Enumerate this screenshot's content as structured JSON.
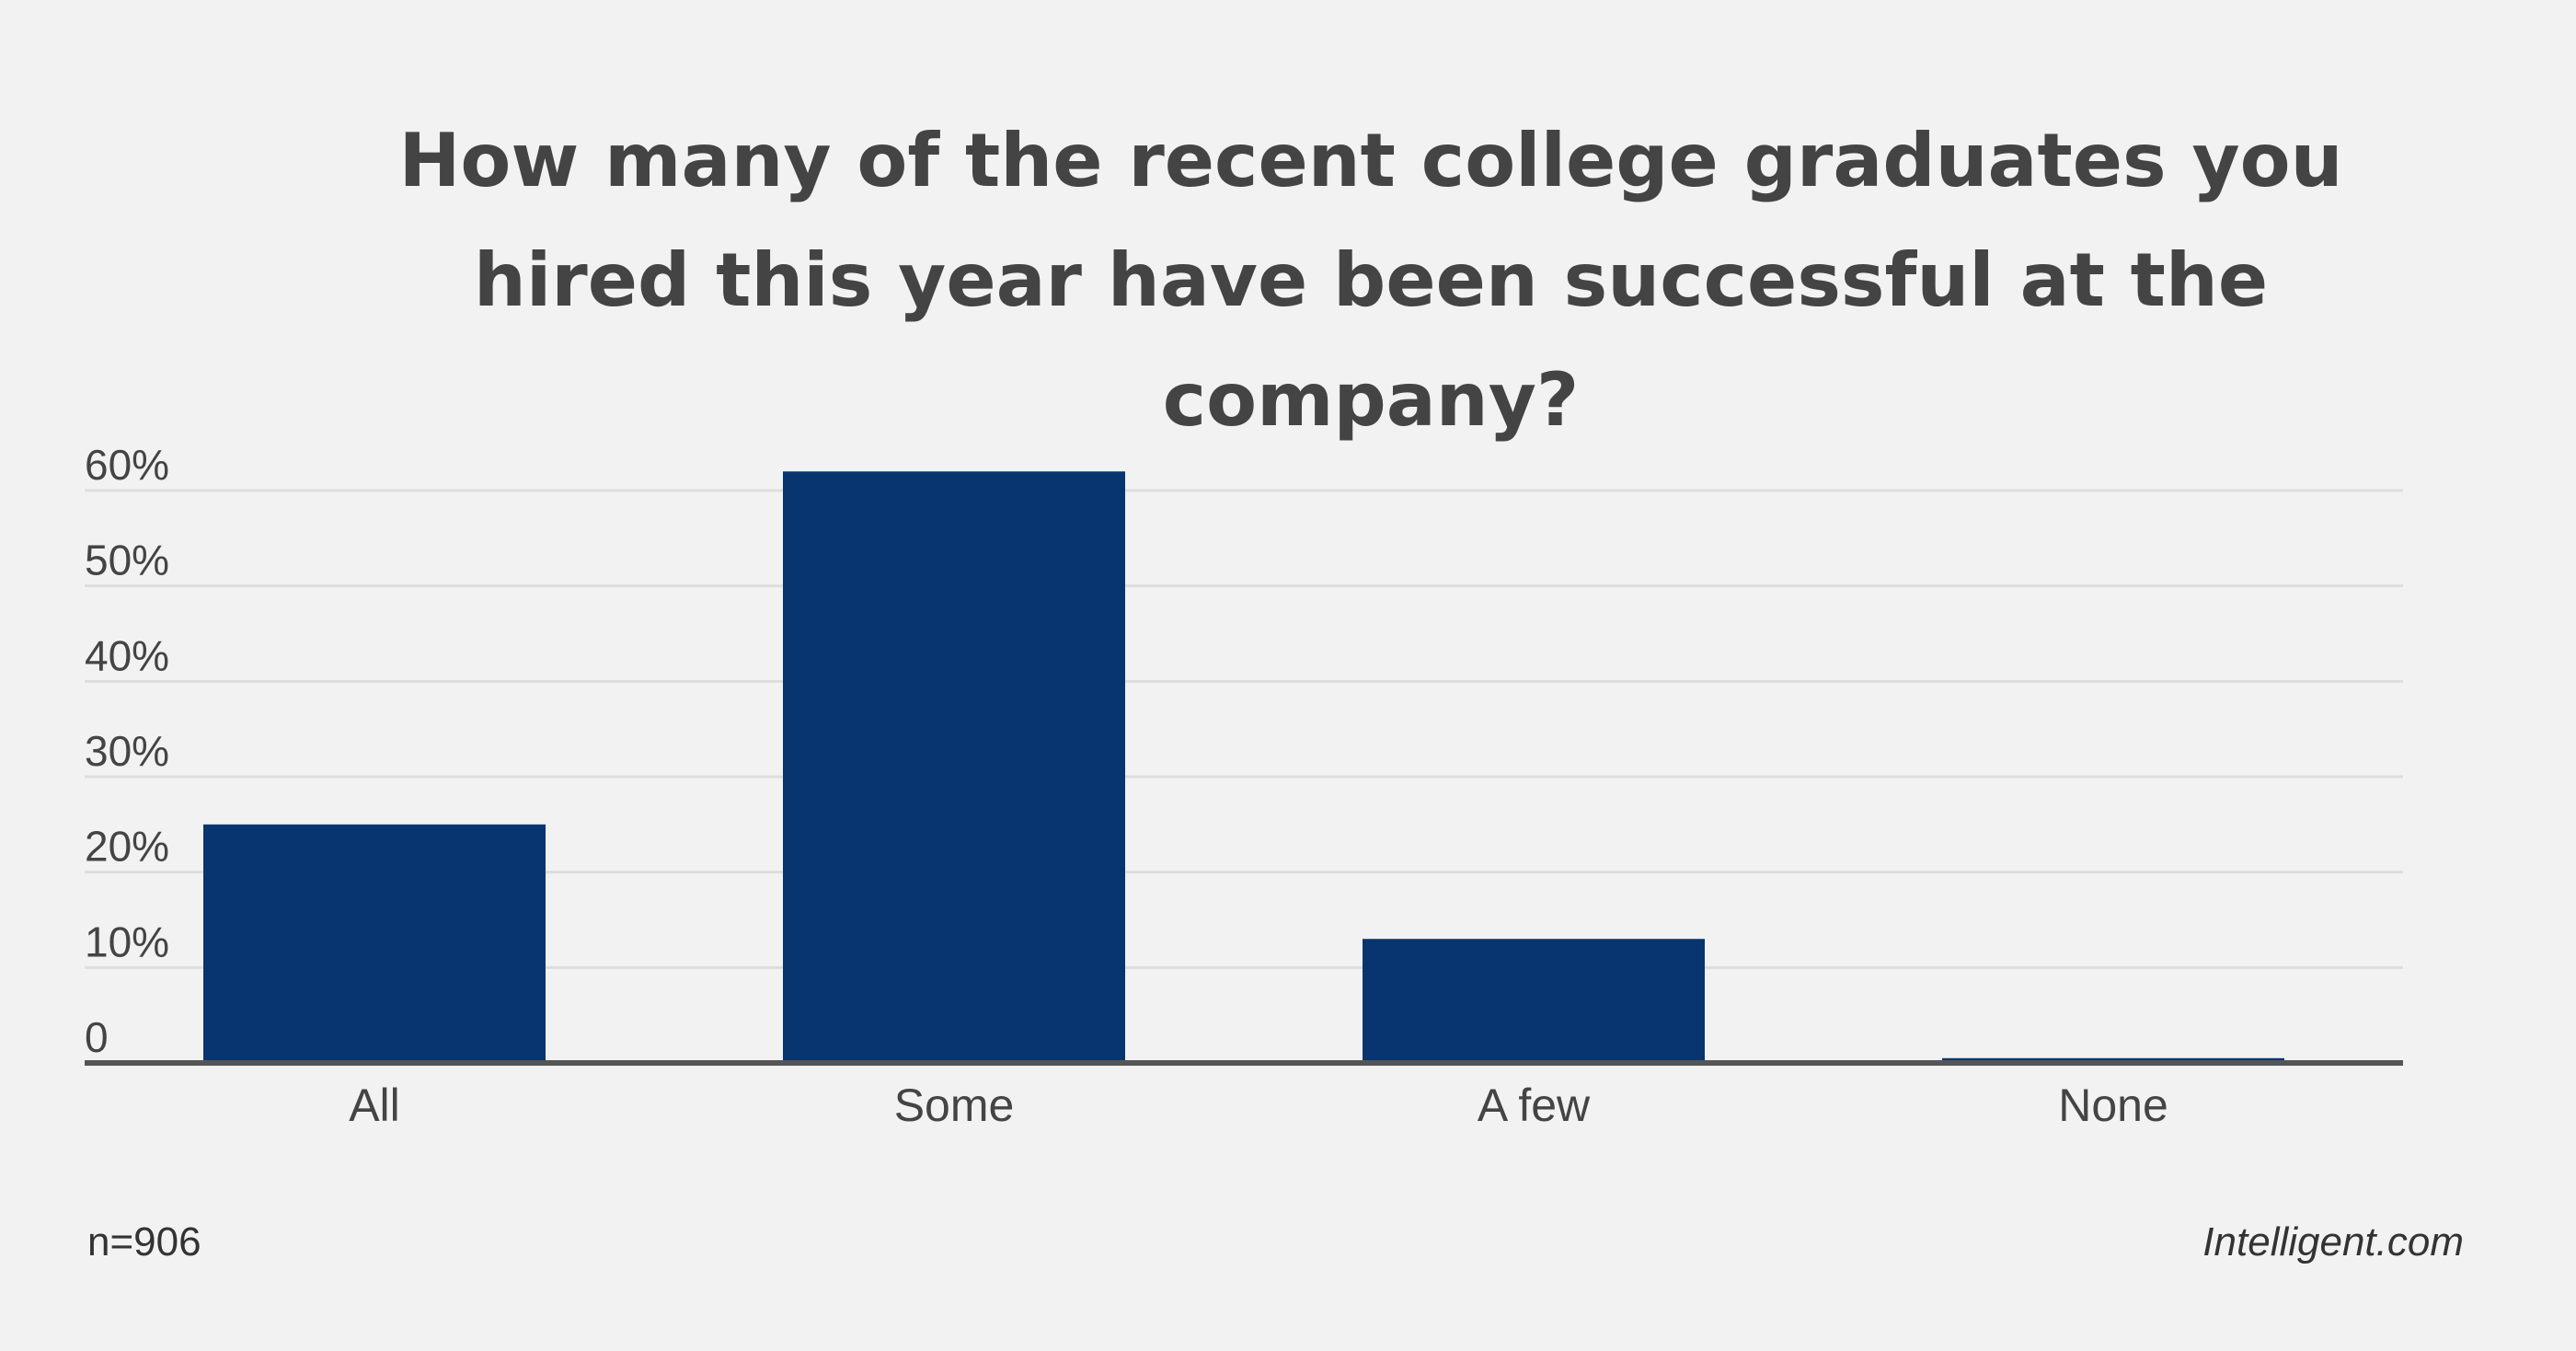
{
  "colors": {
    "background": "#f2f2f2",
    "bar": "#08356f",
    "grid": "#dddddd",
    "axis": "#555555",
    "text": "#444444"
  },
  "footer": {
    "sample_size": "n=906",
    "source": "Intelligent.com"
  },
  "chart_data": {
    "type": "bar",
    "title": "How many of the recent college graduates you hired this year have been successful at the company?",
    "xlabel": "",
    "ylabel": "",
    "categories": [
      "All",
      "Some",
      "A few",
      "None"
    ],
    "values": [
      25,
      62,
      13,
      0.5
    ],
    "value_unit": "%",
    "ylim": [
      0,
      60
    ],
    "yticks": [
      0,
      10,
      20,
      30,
      40,
      50,
      60
    ],
    "ytick_labels": [
      "0",
      "10%",
      "20%",
      "30%",
      "40%",
      "50%",
      "60%"
    ],
    "grid": true,
    "legend": "none"
  }
}
